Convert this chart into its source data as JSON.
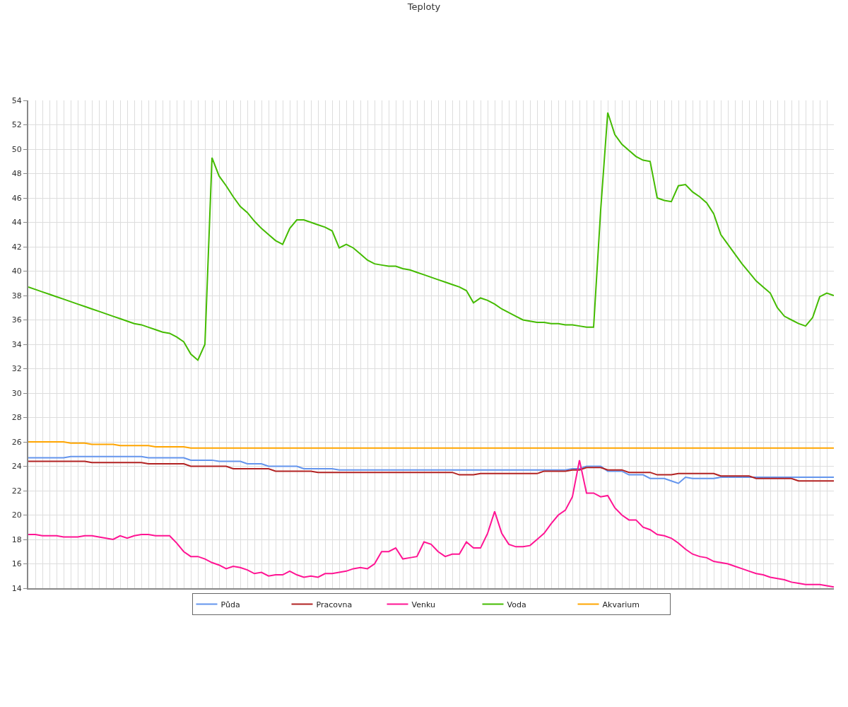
{
  "chart_data": {
    "type": "line",
    "title": "Teploty",
    "categories": [
      null,
      null,
      null,
      null,
      null,
      null,
      null,
      null,
      null,
      null,
      null,
      null,
      null,
      null,
      null,
      null,
      null,
      null,
      null,
      null,
      null,
      null,
      null,
      null,
      null,
      null,
      null,
      null,
      null,
      null,
      null,
      null,
      null,
      null,
      null,
      null,
      null,
      null,
      null,
      null,
      null,
      null,
      null,
      null,
      null,
      null,
      null,
      null,
      null,
      null,
      null,
      null,
      null,
      null,
      null,
      null,
      null,
      null,
      null,
      null,
      null,
      null,
      null,
      null,
      null,
      null,
      null,
      null,
      null,
      null,
      null,
      null,
      null,
      null,
      null,
      null,
      null,
      null,
      null,
      null,
      null,
      null,
      null,
      null,
      null,
      null,
      null,
      null,
      null,
      null,
      null,
      null,
      null,
      null,
      null,
      null,
      null,
      null,
      null,
      null,
      null,
      null,
      null,
      null,
      null,
      null,
      null,
      null,
      null,
      null,
      null,
      null,
      null,
      null,
      null
    ],
    "ylim": [
      14,
      54
    ],
    "yticks": [
      14,
      16,
      18,
      20,
      22,
      24,
      26,
      28,
      30,
      32,
      34,
      36,
      38,
      40,
      42,
      44,
      46,
      48,
      50,
      52,
      54
    ],
    "grid": true,
    "legend": "bottom",
    "marker": "none",
    "line_style": "solid",
    "series": [
      {
        "name": "Půda",
        "color": "#6495ed",
        "values": [
          24.7,
          24.7,
          24.7,
          24.7,
          24.7,
          24.7,
          24.8,
          24.8,
          24.8,
          24.8,
          24.8,
          24.8,
          24.8,
          24.8,
          24.8,
          24.8,
          24.8,
          24.7,
          24.7,
          24.7,
          24.7,
          24.7,
          24.7,
          24.5,
          24.5,
          24.5,
          24.5,
          24.4,
          24.4,
          24.4,
          24.4,
          24.2,
          24.2,
          24.2,
          24.0,
          24.0,
          24.0,
          24.0,
          24.0,
          23.8,
          23.8,
          23.8,
          23.8,
          23.8,
          23.7,
          23.7,
          23.7,
          23.7,
          23.7,
          23.7,
          23.7,
          23.7,
          23.7,
          23.7,
          23.7,
          23.7,
          23.7,
          23.7,
          23.7,
          23.7,
          23.7,
          23.7,
          23.7,
          23.7,
          23.7,
          23.7,
          23.7,
          23.7,
          23.7,
          23.7,
          23.7,
          23.7,
          23.7,
          23.7,
          23.7,
          23.7,
          23.7,
          23.8,
          23.8,
          24.0,
          24.0,
          24.0,
          23.6,
          23.6,
          23.6,
          23.3,
          23.3,
          23.3,
          23.0,
          23.0,
          23.0,
          22.8,
          22.6,
          23.1,
          23.0,
          23.0,
          23.0,
          23.0,
          23.1,
          23.1,
          23.1,
          23.1,
          23.1,
          23.1,
          23.1,
          23.1,
          23.1,
          23.1,
          23.1,
          23.1,
          23.1,
          23.1,
          23.1,
          23.1,
          23.1
        ]
      },
      {
        "name": "Pracovna",
        "color": "#b22222",
        "values": [
          24.4,
          24.4,
          24.4,
          24.4,
          24.4,
          24.4,
          24.4,
          24.4,
          24.4,
          24.3,
          24.3,
          24.3,
          24.3,
          24.3,
          24.3,
          24.3,
          24.3,
          24.2,
          24.2,
          24.2,
          24.2,
          24.2,
          24.2,
          24.0,
          24.0,
          24.0,
          24.0,
          24.0,
          24.0,
          23.8,
          23.8,
          23.8,
          23.8,
          23.8,
          23.8,
          23.6,
          23.6,
          23.6,
          23.6,
          23.6,
          23.6,
          23.5,
          23.5,
          23.5,
          23.5,
          23.5,
          23.5,
          23.5,
          23.5,
          23.5,
          23.5,
          23.5,
          23.5,
          23.5,
          23.5,
          23.5,
          23.5,
          23.5,
          23.5,
          23.5,
          23.5,
          23.3,
          23.3,
          23.3,
          23.4,
          23.4,
          23.4,
          23.4,
          23.4,
          23.4,
          23.4,
          23.4,
          23.4,
          23.6,
          23.6,
          23.6,
          23.6,
          23.7,
          23.7,
          23.9,
          23.9,
          23.9,
          23.7,
          23.7,
          23.7,
          23.5,
          23.5,
          23.5,
          23.5,
          23.3,
          23.3,
          23.3,
          23.4,
          23.4,
          23.4,
          23.4,
          23.4,
          23.4,
          23.2,
          23.2,
          23.2,
          23.2,
          23.2,
          23.0,
          23.0,
          23.0,
          23.0,
          23.0,
          23.0,
          22.8,
          22.8,
          22.8,
          22.8,
          22.8,
          22.8
        ]
      },
      {
        "name": "Venku",
        "color": "#ff1493",
        "values": [
          18.4,
          18.4,
          18.3,
          18.3,
          18.3,
          18.2,
          18.2,
          18.2,
          18.3,
          18.3,
          18.2,
          18.1,
          18.0,
          18.3,
          18.1,
          18.3,
          18.4,
          18.4,
          18.3,
          18.3,
          18.3,
          17.7,
          17.0,
          16.6,
          16.6,
          16.4,
          16.1,
          15.9,
          15.6,
          15.8,
          15.7,
          15.5,
          15.2,
          15.3,
          15.0,
          15.1,
          15.1,
          15.4,
          15.1,
          14.9,
          15.0,
          14.9,
          15.2,
          15.2,
          15.3,
          15.4,
          15.6,
          15.7,
          15.6,
          16.0,
          17.0,
          17.0,
          17.3,
          16.4,
          16.5,
          16.6,
          17.8,
          17.6,
          17.0,
          16.6,
          16.8,
          16.8,
          17.8,
          17.3,
          17.3,
          18.5,
          20.3,
          18.5,
          17.6,
          17.4,
          17.4,
          17.5,
          18.0,
          18.5,
          19.3,
          20.0,
          20.4,
          21.5,
          24.5,
          21.8,
          21.8,
          21.5,
          21.6,
          20.6,
          20.0,
          19.6,
          19.6,
          19.0,
          18.8,
          18.4,
          18.3,
          18.1,
          17.7,
          17.2,
          16.8,
          16.6,
          16.5,
          16.2,
          16.1,
          16.0,
          15.8,
          15.6,
          15.4,
          15.2,
          15.1,
          14.9,
          14.8,
          14.7,
          14.5,
          14.4,
          14.3,
          14.3,
          14.3,
          14.2,
          14.1
        ]
      },
      {
        "name": "Voda",
        "color": "#44bb00",
        "values": [
          38.7,
          38.5,
          38.3,
          38.1,
          37.9,
          37.7,
          37.5,
          37.3,
          37.1,
          36.9,
          36.7,
          36.5,
          36.3,
          36.1,
          35.9,
          35.7,
          35.6,
          35.4,
          35.2,
          35.0,
          34.9,
          34.6,
          34.2,
          33.2,
          32.7,
          34.0,
          49.3,
          47.8,
          47.0,
          46.1,
          45.3,
          44.8,
          44.1,
          43.5,
          43.0,
          42.5,
          42.2,
          43.5,
          44.2,
          44.2,
          44.0,
          43.8,
          43.6,
          43.3,
          41.9,
          42.2,
          41.9,
          41.4,
          40.9,
          40.6,
          40.5,
          40.4,
          40.4,
          40.2,
          40.1,
          39.9,
          39.7,
          39.5,
          39.3,
          39.1,
          38.9,
          38.7,
          38.4,
          37.4,
          37.8,
          37.6,
          37.3,
          36.9,
          36.6,
          36.3,
          36.0,
          35.9,
          35.8,
          35.8,
          35.7,
          35.7,
          35.6,
          35.6,
          35.5,
          35.4,
          35.4,
          45.0,
          53.0,
          51.2,
          50.4,
          49.9,
          49.4,
          49.1,
          49.0,
          46.0,
          45.8,
          45.7,
          47.0,
          47.1,
          46.5,
          46.1,
          45.6,
          44.7,
          43.0,
          42.2,
          41.4,
          40.6,
          39.9,
          39.2,
          38.7,
          38.2,
          37.0,
          36.3,
          36.0,
          35.7,
          35.5,
          36.2,
          37.9,
          38.2,
          38.0
        ]
      },
      {
        "name": "Akvarium",
        "color": "#ffa500",
        "values": [
          26.0,
          26.0,
          26.0,
          26.0,
          26.0,
          26.0,
          25.9,
          25.9,
          25.9,
          25.8,
          25.8,
          25.8,
          25.8,
          25.7,
          25.7,
          25.7,
          25.7,
          25.7,
          25.6,
          25.6,
          25.6,
          25.6,
          25.6,
          25.5,
          25.5,
          25.5,
          25.5,
          25.5,
          25.5,
          25.5,
          25.5,
          25.5,
          25.5,
          25.5,
          25.5,
          25.5,
          25.5,
          25.5,
          25.5,
          25.5,
          25.5,
          25.5,
          25.5,
          25.5,
          25.5,
          25.5,
          25.5,
          25.5,
          25.5,
          25.5,
          25.5,
          25.5,
          25.5,
          25.5,
          25.5,
          25.5,
          25.5,
          25.5,
          25.5,
          25.5,
          25.5,
          25.5,
          25.5,
          25.5,
          25.5,
          25.5,
          25.5,
          25.5,
          25.5,
          25.5,
          25.5,
          25.5,
          25.5,
          25.5,
          25.5,
          25.5,
          25.5,
          25.5,
          25.5,
          25.5,
          25.5,
          25.5,
          25.5,
          25.5,
          25.5,
          25.5,
          25.5,
          25.5,
          25.5,
          25.5,
          25.5,
          25.5,
          25.5,
          25.5,
          25.5,
          25.5,
          25.5,
          25.5,
          25.5,
          25.5,
          25.5,
          25.5,
          25.5,
          25.5,
          25.5,
          25.5,
          25.5,
          25.5,
          25.5,
          25.5,
          25.5,
          25.5,
          25.5,
          25.5,
          25.5
        ]
      }
    ]
  }
}
